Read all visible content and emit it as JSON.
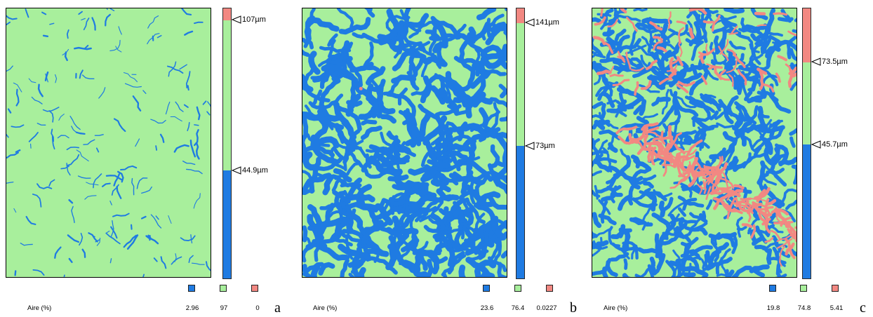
{
  "colors": {
    "blue": "#1f7be2",
    "green": "#a8ef9c",
    "red": "#f28882"
  },
  "panels": [
    {
      "letter": "a",
      "aire_label": "Aire (%)",
      "scale": {
        "top_label": "107µm",
        "bottom_label": "44.9µm",
        "top_fraction": 0.045,
        "bottom_fraction": 0.6
      },
      "values": [
        "2.96",
        "97",
        "0"
      ],
      "blue_density": 0.03,
      "red_density": 0.0
    },
    {
      "letter": "b",
      "aire_label": "Aire (%)",
      "scale": {
        "top_label": "141µm",
        "bottom_label": "73µm",
        "top_fraction": 0.055,
        "bottom_fraction": 0.51
      },
      "values": [
        "23.6",
        "76.4",
        "0.0227"
      ],
      "blue_density": 0.236,
      "red_density": 0.0002
    },
    {
      "letter": "c",
      "aire_label": "Aire (%)",
      "scale": {
        "top_label": "73.5µm",
        "bottom_label": "45.7µm",
        "top_fraction": 0.2,
        "bottom_fraction": 0.505
      },
      "values": [
        "19.8",
        "74.8",
        "5.41"
      ],
      "blue_density": 0.198,
      "red_density": 0.054
    }
  ]
}
